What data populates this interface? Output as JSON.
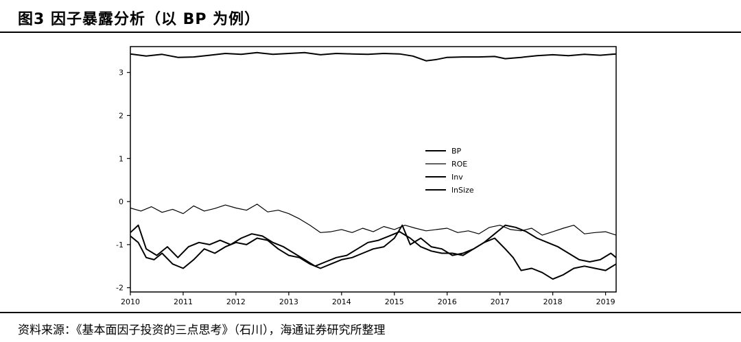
{
  "header": {
    "title": "图3  因子暴露分析（以 BP 为例）"
  },
  "footer": {
    "source": "资料来源：《基本面因子投资的三点思考》（石川），海通证券研究所整理"
  },
  "chart_data": {
    "type": "line",
    "title": "",
    "xlabel": "",
    "ylabel": "",
    "xlim": [
      2010.0,
      2019.2
    ],
    "ylim": [
      -2.1,
      3.6
    ],
    "x_ticks": [
      "2010",
      "2011",
      "2012",
      "2013",
      "2014",
      "2015",
      "2016",
      "2017",
      "2018",
      "2019"
    ],
    "y_ticks": [
      "-2",
      "-1",
      "0",
      "1",
      "2",
      "3"
    ],
    "legend_position": "right",
    "grid": false,
    "series": [
      {
        "name": "BP",
        "style": "solid",
        "points": [
          [
            2010.0,
            3.43
          ],
          [
            2010.3,
            3.38
          ],
          [
            2010.6,
            3.42
          ],
          [
            2010.9,
            3.35
          ],
          [
            2011.2,
            3.36
          ],
          [
            2011.5,
            3.4
          ],
          [
            2011.8,
            3.44
          ],
          [
            2012.1,
            3.42
          ],
          [
            2012.4,
            3.46
          ],
          [
            2012.7,
            3.42
          ],
          [
            2013.0,
            3.44
          ],
          [
            2013.3,
            3.46
          ],
          [
            2013.6,
            3.41
          ],
          [
            2013.9,
            3.44
          ],
          [
            2014.2,
            3.43
          ],
          [
            2014.5,
            3.42
          ],
          [
            2014.8,
            3.44
          ],
          [
            2015.1,
            3.43
          ],
          [
            2015.35,
            3.38
          ],
          [
            2015.6,
            3.27
          ],
          [
            2015.8,
            3.3
          ],
          [
            2016.0,
            3.35
          ],
          [
            2016.3,
            3.36
          ],
          [
            2016.6,
            3.36
          ],
          [
            2016.9,
            3.37
          ],
          [
            2017.1,
            3.32
          ],
          [
            2017.4,
            3.35
          ],
          [
            2017.7,
            3.39
          ],
          [
            2018.0,
            3.41
          ],
          [
            2018.3,
            3.39
          ],
          [
            2018.6,
            3.42
          ],
          [
            2018.9,
            3.4
          ],
          [
            2019.2,
            3.43
          ]
        ]
      },
      {
        "name": "ROE",
        "style": "thin",
        "points": [
          [
            2010.0,
            -0.15
          ],
          [
            2010.2,
            -0.22
          ],
          [
            2010.4,
            -0.12
          ],
          [
            2010.6,
            -0.25
          ],
          [
            2010.8,
            -0.18
          ],
          [
            2011.0,
            -0.28
          ],
          [
            2011.2,
            -0.1
          ],
          [
            2011.4,
            -0.22
          ],
          [
            2011.6,
            -0.16
          ],
          [
            2011.8,
            -0.08
          ],
          [
            2012.0,
            -0.15
          ],
          [
            2012.2,
            -0.2
          ],
          [
            2012.4,
            -0.06
          ],
          [
            2012.6,
            -0.24
          ],
          [
            2012.8,
            -0.2
          ],
          [
            2013.0,
            -0.28
          ],
          [
            2013.2,
            -0.4
          ],
          [
            2013.4,
            -0.55
          ],
          [
            2013.6,
            -0.72
          ],
          [
            2013.8,
            -0.7
          ],
          [
            2014.0,
            -0.65
          ],
          [
            2014.2,
            -0.72
          ],
          [
            2014.4,
            -0.62
          ],
          [
            2014.6,
            -0.7
          ],
          [
            2014.8,
            -0.58
          ],
          [
            2015.0,
            -0.65
          ],
          [
            2015.2,
            -0.55
          ],
          [
            2015.4,
            -0.62
          ],
          [
            2015.6,
            -0.68
          ],
          [
            2015.8,
            -0.65
          ],
          [
            2016.0,
            -0.62
          ],
          [
            2016.2,
            -0.72
          ],
          [
            2016.4,
            -0.68
          ],
          [
            2016.6,
            -0.75
          ],
          [
            2016.8,
            -0.6
          ],
          [
            2017.0,
            -0.55
          ],
          [
            2017.2,
            -0.65
          ],
          [
            2017.4,
            -0.68
          ],
          [
            2017.6,
            -0.62
          ],
          [
            2017.8,
            -0.78
          ],
          [
            2018.0,
            -0.7
          ],
          [
            2018.2,
            -0.62
          ],
          [
            2018.4,
            -0.55
          ],
          [
            2018.6,
            -0.75
          ],
          [
            2018.8,
            -0.72
          ],
          [
            2019.0,
            -0.7
          ],
          [
            2019.2,
            -0.78
          ]
        ]
      },
      {
        "name": "Inv",
        "style": "solid",
        "points": [
          [
            2010.0,
            -0.72
          ],
          [
            2010.15,
            -0.55
          ],
          [
            2010.3,
            -1.1
          ],
          [
            2010.5,
            -1.25
          ],
          [
            2010.7,
            -1.05
          ],
          [
            2010.9,
            -1.3
          ],
          [
            2011.1,
            -1.05
          ],
          [
            2011.3,
            -0.95
          ],
          [
            2011.5,
            -1.0
          ],
          [
            2011.7,
            -0.9
          ],
          [
            2011.9,
            -1.0
          ],
          [
            2012.1,
            -0.85
          ],
          [
            2012.3,
            -0.75
          ],
          [
            2012.5,
            -0.8
          ],
          [
            2012.7,
            -0.95
          ],
          [
            2012.9,
            -1.05
          ],
          [
            2013.1,
            -1.2
          ],
          [
            2013.3,
            -1.35
          ],
          [
            2013.5,
            -1.5
          ],
          [
            2013.7,
            -1.4
          ],
          [
            2013.9,
            -1.3
          ],
          [
            2014.1,
            -1.25
          ],
          [
            2014.3,
            -1.1
          ],
          [
            2014.5,
            -0.95
          ],
          [
            2014.7,
            -0.9
          ],
          [
            2014.9,
            -0.8
          ],
          [
            2015.1,
            -0.7
          ],
          [
            2015.3,
            -0.85
          ],
          [
            2015.5,
            -1.05
          ],
          [
            2015.7,
            -1.15
          ],
          [
            2015.9,
            -1.2
          ],
          [
            2016.1,
            -1.2
          ],
          [
            2016.3,
            -1.25
          ],
          [
            2016.5,
            -1.1
          ],
          [
            2016.7,
            -0.95
          ],
          [
            2016.9,
            -0.75
          ],
          [
            2017.1,
            -0.55
          ],
          [
            2017.3,
            -0.6
          ],
          [
            2017.5,
            -0.7
          ],
          [
            2017.7,
            -0.85
          ],
          [
            2017.9,
            -0.95
          ],
          [
            2018.1,
            -1.05
          ],
          [
            2018.3,
            -1.2
          ],
          [
            2018.5,
            -1.35
          ],
          [
            2018.7,
            -1.4
          ],
          [
            2018.9,
            -1.35
          ],
          [
            2019.1,
            -1.2
          ],
          [
            2019.2,
            -1.3
          ]
        ]
      },
      {
        "name": "lnSize",
        "style": "solid",
        "points": [
          [
            2010.0,
            -0.8
          ],
          [
            2010.15,
            -0.95
          ],
          [
            2010.3,
            -1.3
          ],
          [
            2010.45,
            -1.35
          ],
          [
            2010.6,
            -1.2
          ],
          [
            2010.8,
            -1.45
          ],
          [
            2011.0,
            -1.55
          ],
          [
            2011.2,
            -1.35
          ],
          [
            2011.4,
            -1.1
          ],
          [
            2011.6,
            -1.2
          ],
          [
            2011.8,
            -1.05
          ],
          [
            2012.0,
            -0.95
          ],
          [
            2012.2,
            -1.0
          ],
          [
            2012.4,
            -0.85
          ],
          [
            2012.6,
            -0.9
          ],
          [
            2012.8,
            -1.1
          ],
          [
            2013.0,
            -1.25
          ],
          [
            2013.2,
            -1.3
          ],
          [
            2013.4,
            -1.45
          ],
          [
            2013.6,
            -1.55
          ],
          [
            2013.8,
            -1.45
          ],
          [
            2014.0,
            -1.35
          ],
          [
            2014.2,
            -1.3
          ],
          [
            2014.4,
            -1.2
          ],
          [
            2014.6,
            -1.1
          ],
          [
            2014.8,
            -1.05
          ],
          [
            2015.0,
            -0.85
          ],
          [
            2015.15,
            -0.55
          ],
          [
            2015.3,
            -1.0
          ],
          [
            2015.5,
            -0.85
          ],
          [
            2015.7,
            -1.05
          ],
          [
            2015.9,
            -1.1
          ],
          [
            2016.1,
            -1.25
          ],
          [
            2016.3,
            -1.2
          ],
          [
            2016.5,
            -1.1
          ],
          [
            2016.7,
            -0.95
          ],
          [
            2016.9,
            -0.85
          ],
          [
            2017.1,
            -1.1
          ],
          [
            2017.25,
            -1.3
          ],
          [
            2017.4,
            -1.6
          ],
          [
            2017.6,
            -1.55
          ],
          [
            2017.8,
            -1.65
          ],
          [
            2018.0,
            -1.8
          ],
          [
            2018.2,
            -1.7
          ],
          [
            2018.4,
            -1.55
          ],
          [
            2018.6,
            -1.5
          ],
          [
            2018.8,
            -1.55
          ],
          [
            2019.0,
            -1.6
          ],
          [
            2019.2,
            -1.45
          ]
        ]
      }
    ]
  }
}
